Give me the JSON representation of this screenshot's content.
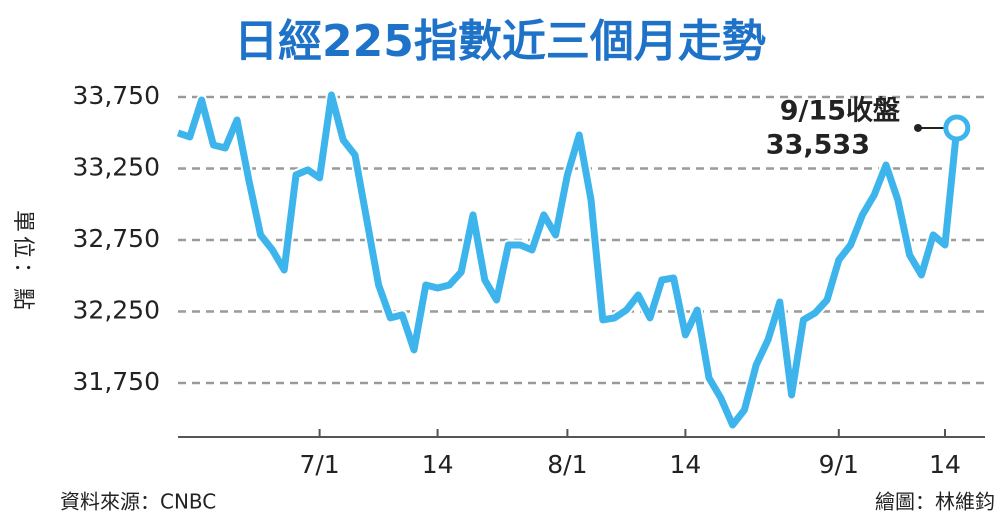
{
  "chart_data": {
    "type": "line",
    "title": "日經225指數近三個月走勢",
    "y_label": "單位：點",
    "source": "資料來源：CNBC",
    "credit": "繪圖：林維鈞",
    "annotation": {
      "label": "9/15收盤",
      "value_label": "33,533"
    },
    "color": "#3db5ec",
    "grid": true,
    "categories": [
      null,
      null,
      null,
      null,
      null,
      null,
      null,
      null,
      null,
      null,
      null,
      null,
      "7/1",
      null,
      null,
      null,
      null,
      null,
      null,
      null,
      null,
      null,
      "14",
      null,
      null,
      null,
      null,
      null,
      null,
      null,
      null,
      null,
      null,
      "8/1",
      null,
      null,
      null,
      null,
      null,
      null,
      null,
      null,
      null,
      "14",
      null,
      null,
      null,
      null,
      null,
      null,
      null,
      null,
      null,
      null,
      null,
      null,
      "9/1",
      null,
      null,
      null,
      null,
      null,
      null,
      null,
      null,
      "14",
      null
    ],
    "values": [
      33498,
      33470,
      33729,
      33414,
      33393,
      33589,
      33170,
      32785,
      32680,
      32540,
      33205,
      33240,
      33184,
      33764,
      33449,
      33344,
      32890,
      32435,
      32205,
      32226,
      31981,
      32435,
      32414,
      32435,
      32526,
      32925,
      32470,
      32330,
      32715,
      32715,
      32680,
      32925,
      32785,
      33205,
      33484,
      33030,
      32191,
      32205,
      32260,
      32365,
      32205,
      32470,
      32484,
      32086,
      32260,
      31785,
      31645,
      31456,
      31561,
      31876,
      32051,
      32316,
      31666,
      32191,
      32240,
      32330,
      32610,
      32715,
      32925,
      33065,
      33274,
      33030,
      32645,
      32505,
      32785,
      32715,
      33533
    ],
    "ylim": [
      31372,
      33900
    ],
    "yticks": [
      {
        "value": 31750,
        "label": "31,750"
      },
      {
        "value": 32250,
        "label": "32,250"
      },
      {
        "value": 32750,
        "label": "32,750"
      },
      {
        "value": 33250,
        "label": "33,250"
      },
      {
        "value": 33750,
        "label": "33,750"
      }
    ]
  }
}
